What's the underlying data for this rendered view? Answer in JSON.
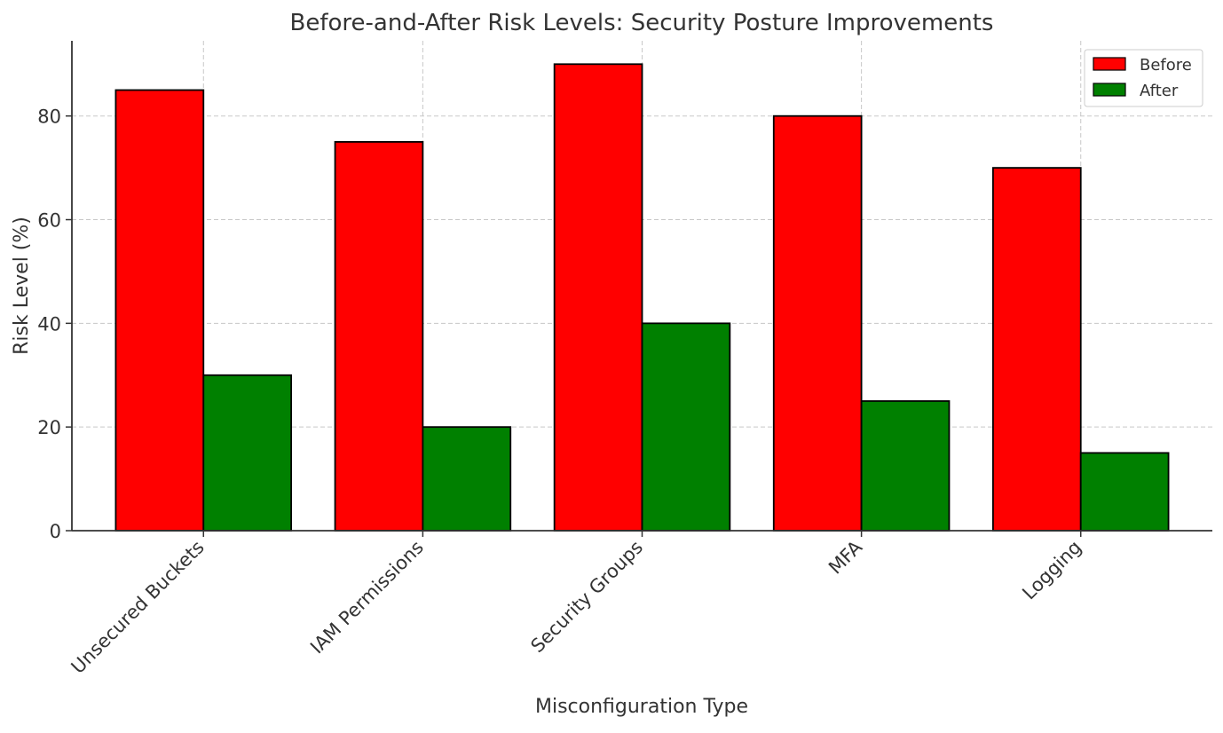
{
  "chart_data": {
    "type": "bar",
    "title": "Before-and-After Risk Levels: Security Posture Improvements",
    "xlabel": "Misconfiguration Type",
    "ylabel": "Risk Level (%)",
    "categories": [
      "Unsecured Buckets",
      "IAM Permissions",
      "Security Groups",
      "MFA",
      "Logging"
    ],
    "series": [
      {
        "name": "Before",
        "values": [
          85,
          75,
          90,
          80,
          70
        ],
        "color": "#ff0000"
      },
      {
        "name": "After",
        "values": [
          30,
          20,
          40,
          25,
          15
        ],
        "color": "#008000"
      }
    ],
    "ylim": [
      0,
      94.5
    ],
    "yticks": [
      0,
      20,
      40,
      60,
      80
    ],
    "grid": true,
    "legend_position": "top-right"
  }
}
